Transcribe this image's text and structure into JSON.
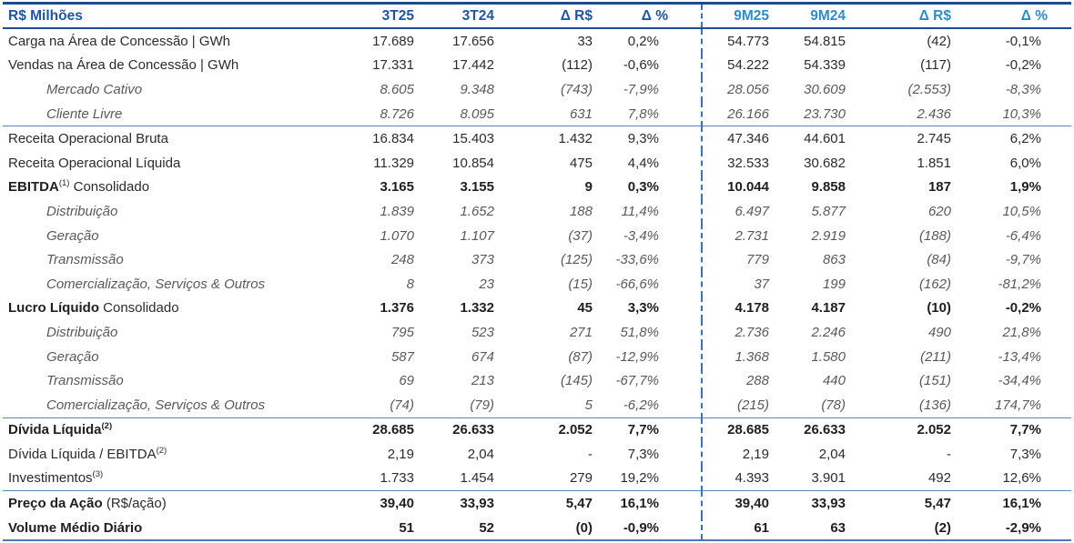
{
  "colors": {
    "header_dark_blue": "#1F55A8",
    "header_light_blue": "#2F8CCC",
    "border_dark_blue": "#1D4C94",
    "border_steel_blue": "#5C85BF",
    "divider_dashed_blue": "#3F72B4",
    "text_normal": "#2B2B2B",
    "text_sub_italic": "#595959"
  },
  "table": {
    "header": {
      "label": "R$ Milhões",
      "q_cols": [
        "3T25",
        "3T24",
        "Δ R$",
        "Δ %"
      ],
      "m_cols": [
        "9M25",
        "9M24",
        "Δ R$",
        "Δ %"
      ]
    },
    "rows": [
      {
        "variant": "normal",
        "label": [
          {
            "text": "Carga na Área de Concessão | GWh"
          }
        ],
        "values": [
          "17.689",
          "17.656",
          "33",
          "0,2%",
          "54.773",
          "54.815",
          "(42)",
          "-0,1%"
        ]
      },
      {
        "variant": "normal",
        "label": [
          {
            "text": "Vendas na Área de Concessão | GWh"
          }
        ],
        "values": [
          "17.331",
          "17.442",
          "(112)",
          "-0,6%",
          "54.222",
          "54.339",
          "(117)",
          "-0,2%"
        ]
      },
      {
        "variant": "sub",
        "label": [
          {
            "text": "Mercado Cativo"
          }
        ],
        "values": [
          "8.605",
          "9.348",
          "(743)",
          "-7,9%",
          "28.056",
          "30.609",
          "(2.553)",
          "-8,3%"
        ]
      },
      {
        "variant": "sub",
        "label": [
          {
            "text": "Cliente Livre"
          }
        ],
        "values": [
          "8.726",
          "8.095",
          "631",
          "7,8%",
          "26.166",
          "23.730",
          "2.436",
          "10,3%"
        ]
      },
      {
        "variant": "normal",
        "sep_above": true,
        "label": [
          {
            "text": "Receita Operacional Bruta"
          }
        ],
        "values": [
          "16.834",
          "15.403",
          "1.432",
          "9,3%",
          "47.346",
          "44.601",
          "2.745",
          "6,2%"
        ]
      },
      {
        "variant": "normal",
        "label": [
          {
            "text": "Receita Operacional Líquida"
          }
        ],
        "values": [
          "11.329",
          "10.854",
          "475",
          "4,4%",
          "32.533",
          "30.682",
          "1.851",
          "6,0%"
        ]
      },
      {
        "variant": "bold",
        "label": [
          {
            "text": "EBITDA",
            "bold": true
          },
          {
            "text": "(1)",
            "sup": true
          },
          {
            "text": " Consolidado"
          }
        ],
        "values": [
          "3.165",
          "3.155",
          "9",
          "0,3%",
          "10.044",
          "9.858",
          "187",
          "1,9%"
        ]
      },
      {
        "variant": "sub",
        "label": [
          {
            "text": "Distribuição"
          }
        ],
        "values": [
          "1.839",
          "1.652",
          "188",
          "11,4%",
          "6.497",
          "5.877",
          "620",
          "10,5%"
        ]
      },
      {
        "variant": "sub",
        "label": [
          {
            "text": "Geração"
          }
        ],
        "values": [
          "1.070",
          "1.107",
          "(37)",
          "-3,4%",
          "2.731",
          "2.919",
          "(188)",
          "-6,4%"
        ]
      },
      {
        "variant": "sub",
        "label": [
          {
            "text": "Transmissão"
          }
        ],
        "values": [
          "248",
          "373",
          "(125)",
          "-33,6%",
          "779",
          "863",
          "(84)",
          "-9,7%"
        ]
      },
      {
        "variant": "sub",
        "label": [
          {
            "text": "Comercialização, Serviços & Outros"
          }
        ],
        "values": [
          "8",
          "23",
          "(15)",
          "-66,6%",
          "37",
          "199",
          "(162)",
          "-81,2%"
        ]
      },
      {
        "variant": "bold",
        "label": [
          {
            "text": "Lucro Líquido",
            "bold": true
          },
          {
            "text": " Consolidado"
          }
        ],
        "values": [
          "1.376",
          "1.332",
          "45",
          "3,3%",
          "4.178",
          "4.187",
          "(10)",
          "-0,2%"
        ]
      },
      {
        "variant": "sub",
        "label": [
          {
            "text": "Distribuição"
          }
        ],
        "values": [
          "795",
          "523",
          "271",
          "51,8%",
          "2.736",
          "2.246",
          "490",
          "21,8%"
        ]
      },
      {
        "variant": "sub",
        "label": [
          {
            "text": "Geração"
          }
        ],
        "values": [
          "587",
          "674",
          "(87)",
          "-12,9%",
          "1.368",
          "1.580",
          "(211)",
          "-13,4%"
        ]
      },
      {
        "variant": "sub",
        "label": [
          {
            "text": "Transmissão"
          }
        ],
        "values": [
          "69",
          "213",
          "(145)",
          "-67,7%",
          "288",
          "440",
          "(151)",
          "-34,4%"
        ]
      },
      {
        "variant": "sub",
        "label": [
          {
            "text": "Comercialização, Serviços & Outros"
          }
        ],
        "values": [
          "(74)",
          "(79)",
          "5",
          "-6,2%",
          "(215)",
          "(78)",
          "(136)",
          "174,7%"
        ]
      },
      {
        "variant": "bold",
        "sep_above": true,
        "label": [
          {
            "text": "Dívida Líquida",
            "bold": true
          },
          {
            "text": "(2)",
            "sup": true,
            "bold": true
          }
        ],
        "values": [
          "28.685",
          "26.633",
          "2.052",
          "7,7%",
          "28.685",
          "26.633",
          "2.052",
          "7,7%"
        ]
      },
      {
        "variant": "normal",
        "label": [
          {
            "text": "Dívida Líquida / EBITDA"
          },
          {
            "text": "(2)",
            "sup": true
          }
        ],
        "values": [
          "2,19",
          "2,04",
          "-",
          "7,3%",
          "2,19",
          "2,04",
          "-",
          "7,3%"
        ]
      },
      {
        "variant": "normal",
        "label": [
          {
            "text": "Investimentos"
          },
          {
            "text": "(3)",
            "sup": true
          }
        ],
        "values": [
          "1.733",
          "1.454",
          "279",
          "19,2%",
          "4.393",
          "3.901",
          "492",
          "12,6%"
        ]
      },
      {
        "variant": "bold",
        "sep_above": true,
        "label": [
          {
            "text": "Preço da Ação",
            "bold": true
          },
          {
            "text": " (R$/ação)"
          }
        ],
        "values": [
          "39,40",
          "33,93",
          "5,47",
          "16,1%",
          "39,40",
          "33,93",
          "5,47",
          "16,1%"
        ]
      },
      {
        "variant": "bold",
        "label": [
          {
            "text": "Volume Médio Diário",
            "bold": true
          }
        ],
        "values": [
          "51",
          "52",
          "(0)",
          "-0,9%",
          "61",
          "63",
          "(2)",
          "-2,9%"
        ]
      }
    ]
  }
}
